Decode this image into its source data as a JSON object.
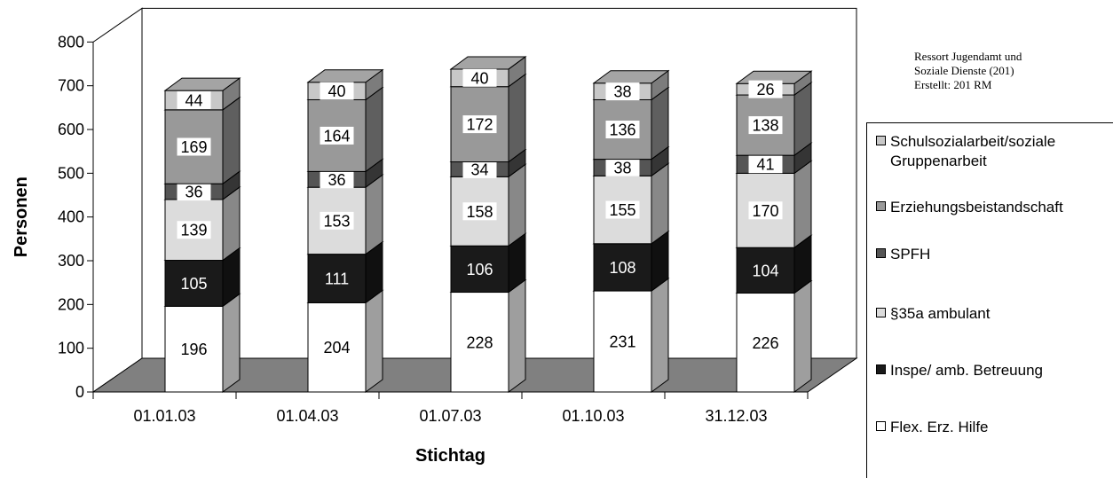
{
  "chart_data": {
    "type": "bar",
    "stacked": true,
    "three_d": true,
    "xlabel": "Stichtag",
    "ylabel": "Personen",
    "ylim": [
      0,
      800
    ],
    "yticks": [
      0,
      100,
      200,
      300,
      400,
      500,
      600,
      700,
      800
    ],
    "categories": [
      "01.01.03",
      "01.04.03",
      "01.07.03",
      "01.10.03",
      "31.12.03"
    ],
    "series": [
      {
        "name": "Flex. Erz. Hilfe",
        "values": [
          196,
          204,
          228,
          231,
          226
        ],
        "color": "#ffffff"
      },
      {
        "name": "Inspe/ amb. Betreuung",
        "values": [
          105,
          111,
          106,
          108,
          104
        ],
        "color": "#1a1a1a"
      },
      {
        "name": "§35a ambulant",
        "values": [
          139,
          153,
          158,
          155,
          170
        ],
        "color": "#dcdcdc"
      },
      {
        "name": "SPFH",
        "values": [
          36,
          36,
          34,
          38,
          41
        ],
        "color": "#555555"
      },
      {
        "name": "Erziehungsbeistandschaft",
        "values": [
          169,
          164,
          172,
          136,
          138
        ],
        "color": "#999999"
      },
      {
        "name": "Schulsozialarbeit/soziale Gruppenarbeit",
        "values": [
          44,
          40,
          40,
          38,
          26
        ],
        "color": "#c8c8c8"
      }
    ],
    "legend_position": "right",
    "grid": false
  },
  "note": {
    "line1": "Ressort Jugendamt und",
    "line2": "Soziale Dienste (201)",
    "line3": "Erstellt: 201 RM"
  },
  "legend": {
    "items": [
      {
        "label": "Schulsozialarbeit/soziale Gruppenarbeit",
        "color": "#c8c8c8"
      },
      {
        "label": "Erziehungsbeistandschaft",
        "color": "#999999"
      },
      {
        "label": "SPFH",
        "color": "#555555"
      },
      {
        "label": "§35a ambulant",
        "color": "#dcdcdc"
      },
      {
        "label": "Inspe/ amb. Betreuung",
        "color": "#1a1a1a"
      },
      {
        "label": "Flex. Erz. Hilfe",
        "color": "#ffffff"
      }
    ]
  }
}
